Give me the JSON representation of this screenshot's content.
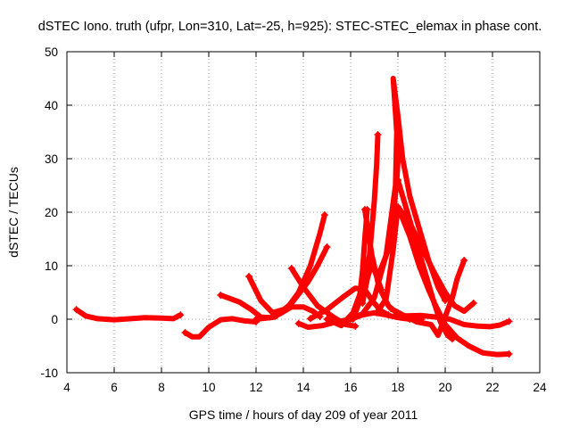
{
  "chart_data": {
    "type": "line",
    "title": "dSTEC Iono. truth (ufpr, Lon=310, Lat=-25, h=925): STEC-STEC_elemax in phase cont.",
    "xlabel": "GPS time / hours of day 209 of year 2011",
    "ylabel": "dSTEC  / TECUs",
    "xlim": [
      4,
      24
    ],
    "ylim": [
      -10,
      50
    ],
    "xticks": [
      "4",
      "6",
      "8",
      "10",
      "12",
      "14",
      "16",
      "18",
      "20",
      "22",
      "24"
    ],
    "yticks": [
      "-10",
      "0",
      "10",
      "20",
      "30",
      "40",
      "50"
    ],
    "grid": true,
    "line_color": "#ff0000",
    "marker": "plus",
    "series": [
      {
        "points": [
          [
            4.4,
            1.8
          ],
          [
            4.8,
            0.6
          ],
          [
            5.3,
            0.1
          ],
          [
            6,
            -0.1
          ],
          [
            6.7,
            0.1
          ],
          [
            7.3,
            0.3
          ],
          [
            8,
            0.2
          ],
          [
            8.5,
            0.1
          ],
          [
            8.8,
            0.8
          ]
        ]
      },
      {
        "points": [
          [
            9.0,
            -2.5
          ],
          [
            9.3,
            -3.3
          ],
          [
            9.6,
            -3.3
          ],
          [
            10.0,
            -1.5
          ],
          [
            10.5,
            -0.1
          ],
          [
            11.0,
            0.1
          ],
          [
            11.5,
            -0.3
          ],
          [
            12.0,
            -0.5
          ]
        ]
      },
      {
        "points": [
          [
            10.5,
            4.5
          ],
          [
            11.3,
            3.2
          ],
          [
            11.8,
            1.8
          ],
          [
            12.2,
            0.4
          ],
          [
            12.6,
            0.3
          ],
          [
            13,
            1.0
          ],
          [
            13.5,
            2.3
          ],
          [
            14,
            2.3
          ],
          [
            14.4,
            1.5
          ],
          [
            14.7,
            0.5
          ]
        ]
      },
      {
        "points": [
          [
            11.7,
            8.0
          ],
          [
            12.2,
            3.5
          ],
          [
            12.7,
            1.2
          ],
          [
            13.3,
            2.0
          ],
          [
            13.8,
            5.0
          ],
          [
            14.3,
            10.0
          ],
          [
            14.7,
            16.0
          ],
          [
            14.9,
            19.5
          ]
        ]
      },
      {
        "points": [
          [
            12.0,
            0.0
          ],
          [
            12.8,
            0.4
          ],
          [
            13.5,
            3.0
          ],
          [
            14.2,
            7.0
          ],
          [
            14.6,
            10.0
          ],
          [
            15.0,
            13.5
          ]
        ]
      },
      {
        "points": [
          [
            13.5,
            9.5
          ],
          [
            14.0,
            6.0
          ],
          [
            14.6,
            2.5
          ],
          [
            15.3,
            0.3
          ],
          [
            15.8,
            -1.0
          ],
          [
            16.2,
            -1.3
          ]
        ]
      },
      {
        "points": [
          [
            13.8,
            -0.8
          ],
          [
            14.2,
            -1.5
          ],
          [
            14.8,
            -1.2
          ],
          [
            15.4,
            -0.5
          ],
          [
            16.0,
            0.0
          ],
          [
            16.5,
            0.8
          ],
          [
            17.0,
            1.2
          ],
          [
            17.5,
            0.8
          ],
          [
            18.0,
            0.3
          ],
          [
            18.5,
            0.0
          ]
        ]
      },
      {
        "points": [
          [
            14.3,
            0.1
          ],
          [
            15.0,
            1.8
          ],
          [
            15.7,
            4.2
          ],
          [
            16.2,
            5.8
          ],
          [
            16.6,
            5.5
          ],
          [
            17.0,
            3.0
          ],
          [
            17.3,
            1.5
          ],
          [
            17.6,
            0.8
          ]
        ]
      },
      {
        "points": [
          [
            15.0,
            0.0
          ],
          [
            15.6,
            -1.2
          ],
          [
            16.1,
            1.2
          ],
          [
            16.5,
            6.0
          ],
          [
            16.8,
            12.0
          ],
          [
            17.0,
            22.0
          ],
          [
            17.1,
            29.0
          ],
          [
            17.15,
            34.5
          ]
        ]
      },
      {
        "points": [
          [
            16.1,
            0.0
          ],
          [
            16.35,
            3.0
          ],
          [
            16.5,
            9.0
          ],
          [
            16.6,
            15.0
          ],
          [
            16.7,
            20.5
          ]
        ]
      },
      {
        "points": [
          [
            16.6,
            20.5
          ],
          [
            16.9,
            12.0
          ],
          [
            17.2,
            6.0
          ],
          [
            17.6,
            2.5
          ],
          [
            18.0,
            1.0
          ],
          [
            18.5,
            0.2
          ],
          [
            19.0,
            0.0
          ]
        ]
      },
      {
        "points": [
          [
            16.0,
            0.0
          ],
          [
            16.5,
            1.0
          ],
          [
            17.0,
            4.0
          ],
          [
            17.5,
            12.0
          ],
          [
            17.9,
            25.0
          ],
          [
            17.95,
            35.0
          ],
          [
            17.8,
            45.0
          ],
          [
            18.0,
            38.0
          ],
          [
            18.2,
            30.0
          ],
          [
            18.5,
            23.0
          ],
          [
            18.9,
            17.0
          ],
          [
            19.3,
            11.0
          ],
          [
            19.7,
            6.0
          ],
          [
            20.0,
            3.5
          ]
        ]
      },
      {
        "points": [
          [
            17.2,
            8.5
          ],
          [
            17.6,
            13.0
          ],
          [
            17.8,
            19.0
          ],
          [
            17.95,
            26.0
          ],
          [
            18.05,
            33.0
          ]
        ]
      },
      {
        "points": [
          [
            17.1,
            1.2
          ],
          [
            17.5,
            3.8
          ],
          [
            17.8,
            13.0
          ],
          [
            18.0,
            21.0
          ],
          [
            18.5,
            18.0
          ],
          [
            19.0,
            13.5
          ],
          [
            19.5,
            9.0
          ],
          [
            20.0,
            5.0
          ],
          [
            20.4,
            2.5
          ],
          [
            20.8,
            1.5
          ],
          [
            21.2,
            3.0
          ]
        ]
      },
      {
        "points": [
          [
            18.0,
            21.0
          ],
          [
            18.5,
            15.5
          ],
          [
            18.9,
            10.0
          ],
          [
            19.3,
            5.5
          ],
          [
            19.6,
            2.5
          ],
          [
            20.0,
            -1.0
          ],
          [
            20.5,
            -3.5
          ],
          [
            21.0,
            -5.0
          ],
          [
            21.6,
            -6.3
          ],
          [
            22.2,
            -6.6
          ],
          [
            22.7,
            -6.5
          ]
        ]
      },
      {
        "points": [
          [
            18.0,
            26.0
          ],
          [
            18.4,
            20.0
          ],
          [
            18.8,
            14.0
          ],
          [
            19.2,
            8.0
          ],
          [
            19.5,
            3.5
          ],
          [
            19.8,
            -0.5
          ],
          [
            20.1,
            -3.0
          ],
          [
            20.3,
            -3.7
          ]
        ]
      },
      {
        "points": [
          [
            17.7,
            2.0
          ],
          [
            18.2,
            0.8
          ],
          [
            18.8,
            -0.5
          ],
          [
            19.4,
            -1.0
          ],
          [
            19.7,
            -3.0
          ],
          [
            20.0,
            0.5
          ],
          [
            20.3,
            4.0
          ],
          [
            20.5,
            7.5
          ],
          [
            20.8,
            11.0
          ]
        ]
      },
      {
        "points": [
          [
            18.2,
            0.6
          ],
          [
            19.0,
            0.7
          ],
          [
            19.6,
            0.4
          ],
          [
            20.2,
            0.0
          ],
          [
            20.8,
            -1.0
          ],
          [
            21.4,
            -1.3
          ],
          [
            21.9,
            -1.4
          ],
          [
            22.3,
            -1.1
          ],
          [
            22.7,
            -0.4
          ]
        ]
      },
      {
        "points": [
          [
            16.5,
            3.0
          ],
          [
            16.7,
            7.5
          ],
          [
            16.9,
            10.5
          ],
          [
            17.1,
            8.0
          ],
          [
            17.3,
            5.5
          ]
        ]
      }
    ]
  }
}
